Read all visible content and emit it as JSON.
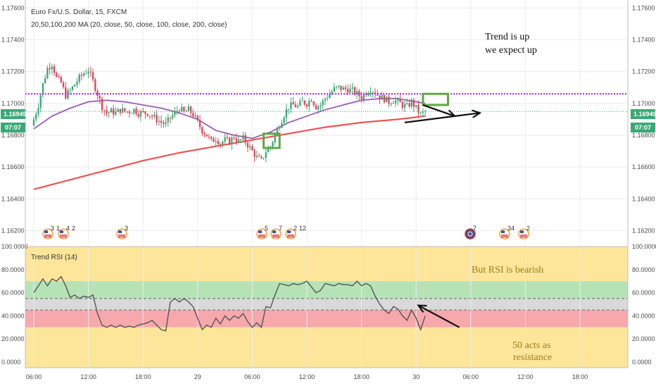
{
  "header": {
    "symbol_title": "Euro Fx/U.S. Dollar, 15, FXCM",
    "ma_legend": "20,50,100,200 MA (20, close, 50, close, 100, close, 200, close)"
  },
  "price_badges": {
    "left_price": "1.16949",
    "left_time": "07:07",
    "right_price": "1.16949",
    "right_time": "07:07",
    "color": "#3aa876"
  },
  "rsi_panel": {
    "title": "Trend RSI (14)"
  },
  "annotations": {
    "trend_note_line1": "Trend is up",
    "trend_note_line2": "we expect up",
    "rsi_note": "But RSI is bearish",
    "resistance_note_line1": "50 acts as",
    "resistance_note_line2": "resistance"
  },
  "events": [
    {
      "icon": "us-flag-icon",
      "label": "3",
      "label2": "1"
    },
    {
      "icon": "us-flag-icon",
      "label": "4",
      "label2": "2"
    },
    {
      "icon": "us-flag-icon",
      "label": "3",
      "label2": ""
    },
    {
      "icon": "us-flag-icon",
      "label": "5",
      "label2": ""
    },
    {
      "icon": "us-flag-icon",
      "label": "7",
      "label2": ""
    },
    {
      "icon": "us-flag-icon",
      "label": "2",
      "label2": "12"
    },
    {
      "icon": "globe-icon",
      "label": "7",
      "label2": ""
    },
    {
      "icon": "us-flag-icon",
      "label": "34",
      "label2": ""
    },
    {
      "icon": "us-flag-icon",
      "label": "2",
      "label2": ""
    }
  ],
  "colors": {
    "up_candle": "#3aa876",
    "down_candle": "#e0435b",
    "ma_purple": "#9a5cb4",
    "ma_red": "#ef5350",
    "resistance_line": "#9c27ff",
    "last_price_line": "#3aa876",
    "rsi_line": "#555555",
    "zone_green": "#b5e3b6",
    "zone_red": "#f7a8ad",
    "zone_gray": "#d9d9d9",
    "zone_yellow": "#fde59a",
    "note_yellow_text": "#a07b1c",
    "box_green": "#5fa846"
  },
  "chart_data": [
    {
      "type": "candlestick",
      "title": "Euro Fx/U.S. Dollar, 15, FXCM",
      "ylim": [
        1.161,
        1.1765
      ],
      "y_ticks": [
        "1.17600",
        "1.17400",
        "1.17200",
        "1.17000",
        "1.16800",
        "1.16600",
        "1.16400",
        "1.16200"
      ],
      "y_tick_values": [
        1.176,
        1.174,
        1.172,
        1.17,
        1.168,
        1.166,
        1.164,
        1.162
      ],
      "x_ticks": [
        "06:00",
        "12:00",
        "18:00",
        "29",
        "06:00",
        "12:00",
        "18:00",
        "30",
        "06:00",
        "12:00",
        "18:00"
      ],
      "x_tick_positions": [
        0,
        24,
        48,
        72,
        96,
        120,
        144,
        168,
        192,
        216,
        240
      ],
      "x_range": [
        0,
        240
      ],
      "close_anchors": [
        [
          0,
          1.169
        ],
        [
          2,
          1.1699
        ],
        [
          4,
          1.1712
        ],
        [
          6,
          1.1722
        ],
        [
          8,
          1.1725
        ],
        [
          10,
          1.1716
        ],
        [
          12,
          1.1713
        ],
        [
          14,
          1.1705
        ],
        [
          16,
          1.1708
        ],
        [
          18,
          1.1712
        ],
        [
          20,
          1.1716
        ],
        [
          22,
          1.1719
        ],
        [
          24,
          1.1721
        ],
        [
          26,
          1.1714
        ],
        [
          28,
          1.1706
        ],
        [
          30,
          1.1698
        ],
        [
          32,
          1.1694
        ],
        [
          34,
          1.1695
        ],
        [
          36,
          1.1694
        ],
        [
          38,
          1.1696
        ],
        [
          40,
          1.1695
        ],
        [
          42,
          1.1695
        ],
        [
          44,
          1.1696
        ],
        [
          46,
          1.1694
        ],
        [
          48,
          1.1694
        ],
        [
          50,
          1.1694
        ],
        [
          52,
          1.1692
        ],
        [
          54,
          1.169
        ],
        [
          56,
          1.1688
        ],
        [
          58,
          1.1687
        ],
        [
          60,
          1.1691
        ],
        [
          62,
          1.1694
        ],
        [
          64,
          1.1697
        ],
        [
          66,
          1.1694
        ],
        [
          68,
          1.1696
        ],
        [
          70,
          1.1693
        ],
        [
          72,
          1.1688
        ],
        [
          74,
          1.1683
        ],
        [
          76,
          1.168
        ],
        [
          78,
          1.1676
        ],
        [
          80,
          1.1678
        ],
        [
          82,
          1.1675
        ],
        [
          84,
          1.1677
        ],
        [
          86,
          1.1676
        ],
        [
          88,
          1.1679
        ],
        [
          90,
          1.1676
        ],
        [
          92,
          1.1678
        ],
        [
          94,
          1.1674
        ],
        [
          96,
          1.167
        ],
        [
          98,
          1.1666
        ],
        [
          100,
          1.1664
        ],
        [
          102,
          1.167
        ],
        [
          104,
          1.1673
        ],
        [
          106,
          1.168
        ],
        [
          108,
          1.1687
        ],
        [
          110,
          1.1693
        ],
        [
          112,
          1.1698
        ],
        [
          114,
          1.1699
        ],
        [
          116,
          1.1698
        ],
        [
          118,
          1.1701
        ],
        [
          120,
          1.17
        ],
        [
          122,
          1.1703
        ],
        [
          124,
          1.1698
        ],
        [
          126,
          1.1699
        ],
        [
          128,
          1.1703
        ],
        [
          130,
          1.1706
        ],
        [
          132,
          1.1709
        ],
        [
          134,
          1.171
        ],
        [
          136,
          1.1709
        ],
        [
          138,
          1.1709
        ],
        [
          140,
          1.1708
        ],
        [
          142,
          1.1706
        ],
        [
          144,
          1.1704
        ],
        [
          146,
          1.1707
        ],
        [
          148,
          1.1709
        ],
        [
          150,
          1.1707
        ],
        [
          152,
          1.1704
        ],
        [
          154,
          1.1703
        ],
        [
          156,
          1.1701
        ],
        [
          158,
          1.1702
        ],
        [
          160,
          1.1701
        ],
        [
          162,
          1.1699
        ],
        [
          164,
          1.1698
        ],
        [
          166,
          1.1701
        ],
        [
          168,
          1.1697
        ],
        [
          170,
          1.1693
        ],
        [
          172,
          1.1695
        ]
      ],
      "moving_averages": [
        {
          "name": "MA 50",
          "color": "#9a5cb4",
          "points": [
            [
              0,
              1.1684
            ],
            [
              8,
              1.1692
            ],
            [
              16,
              1.1697
            ],
            [
              24,
              1.1701
            ],
            [
              32,
              1.1702
            ],
            [
              40,
              1.1701
            ],
            [
              48,
              1.1699
            ],
            [
              56,
              1.1697
            ],
            [
              64,
              1.1694
            ],
            [
              72,
              1.169
            ],
            [
              80,
              1.1683
            ],
            [
              88,
              1.168
            ],
            [
              96,
              1.1678
            ],
            [
              104,
              1.1682
            ],
            [
              112,
              1.1688
            ],
            [
              120,
              1.1692
            ],
            [
              128,
              1.1696
            ],
            [
              136,
              1.1699
            ],
            [
              144,
              1.1702
            ],
            [
              152,
              1.1703
            ],
            [
              160,
              1.1703
            ],
            [
              168,
              1.1701
            ],
            [
              172,
              1.17
            ]
          ]
        },
        {
          "name": "MA 200",
          "color": "#ef5350",
          "points": [
            [
              0,
              1.1646
            ],
            [
              16,
              1.1652
            ],
            [
              32,
              1.1658
            ],
            [
              48,
              1.1664
            ],
            [
              64,
              1.1669
            ],
            [
              80,
              1.1673
            ],
            [
              96,
              1.1677
            ],
            [
              112,
              1.1681
            ],
            [
              128,
              1.1685
            ],
            [
              144,
              1.1688
            ],
            [
              160,
              1.169
            ],
            [
              172,
              1.1692
            ]
          ]
        }
      ],
      "resistance_level": 1.1706,
      "last_price": 1.16949,
      "highlight_boxes": [
        {
          "x": [
            101,
            108
          ],
          "y": [
            1.1672,
            1.1681
          ]
        },
        {
          "x": [
            171,
            182
          ],
          "y": [
            1.1699,
            1.1706
          ]
        }
      ],
      "arrows": [
        {
          "from": [
            171,
            1.1699
          ],
          "to": [
            185,
            1.1692
          ]
        },
        {
          "from": [
            163,
            1.1688
          ],
          "to": [
            196,
            1.1694
          ]
        }
      ]
    },
    {
      "type": "line",
      "title": "Trend RSI (14)",
      "ylim": [
        -5,
        100
      ],
      "y_ticks": [
        "100.0000",
        "80.0000",
        "60.0000",
        "40.0000",
        "20.0000",
        "0.0000"
      ],
      "y_tick_values": [
        100,
        80,
        60,
        40,
        20,
        0
      ],
      "zones": [
        {
          "from": 70,
          "to": 100,
          "color": "#fde59a"
        },
        {
          "from": 55,
          "to": 70,
          "color": "#b5e3b6"
        },
        {
          "from": 45,
          "to": 55,
          "color": "#d9d9d9"
        },
        {
          "from": 30,
          "to": 45,
          "color": "#f7a8ad"
        },
        {
          "from": -5,
          "to": 30,
          "color": "#fde59a"
        }
      ],
      "dashed_levels": [
        55,
        45
      ],
      "series": [
        {
          "values": [
            [
              0,
              60
            ],
            [
              2,
              66
            ],
            [
              4,
              72
            ],
            [
              6,
              66
            ],
            [
              8,
              72
            ],
            [
              10,
              70
            ],
            [
              12,
              74
            ],
            [
              14,
              66
            ],
            [
              16,
              56
            ],
            [
              18,
              58
            ],
            [
              20,
              55
            ],
            [
              22,
              57
            ],
            [
              24,
              56
            ],
            [
              26,
              58
            ],
            [
              28,
              42
            ],
            [
              30,
              32
            ],
            [
              32,
              30
            ],
            [
              34,
              32
            ],
            [
              36,
              30
            ],
            [
              38,
              32
            ],
            [
              40,
              30
            ],
            [
              42,
              31
            ],
            [
              44,
              30
            ],
            [
              46,
              32
            ],
            [
              48,
              33
            ],
            [
              50,
              34
            ],
            [
              52,
              36
            ],
            [
              54,
              32
            ],
            [
              56,
              28
            ],
            [
              58,
              27
            ],
            [
              60,
              52
            ],
            [
              62,
              55
            ],
            [
              64,
              52
            ],
            [
              66,
              55
            ],
            [
              68,
              52
            ],
            [
              70,
              48
            ],
            [
              72,
              38
            ],
            [
              74,
              28
            ],
            [
              76,
              32
            ],
            [
              78,
              30
            ],
            [
              80,
              38
            ],
            [
              82,
              33
            ],
            [
              84,
              40
            ],
            [
              86,
              36
            ],
            [
              88,
              40
            ],
            [
              90,
              38
            ],
            [
              92,
              42
            ],
            [
              94,
              35
            ],
            [
              96,
              30
            ],
            [
              98,
              34
            ],
            [
              100,
              30
            ],
            [
              102,
              48
            ],
            [
              104,
              47
            ],
            [
              106,
              58
            ],
            [
              108,
              68
            ],
            [
              110,
              67
            ],
            [
              112,
              66
            ],
            [
              114,
              68
            ],
            [
              116,
              67
            ],
            [
              118,
              68
            ],
            [
              120,
              70
            ],
            [
              122,
              65
            ],
            [
              124,
              60
            ],
            [
              126,
              62
            ],
            [
              128,
              68
            ],
            [
              130,
              67
            ],
            [
              132,
              66
            ],
            [
              134,
              68
            ],
            [
              136,
              67
            ],
            [
              138,
              67
            ],
            [
              140,
              66
            ],
            [
              142,
              70
            ],
            [
              144,
              66
            ],
            [
              146,
              68
            ],
            [
              148,
              66
            ],
            [
              150,
              57
            ],
            [
              152,
              50
            ],
            [
              154,
              45
            ],
            [
              156,
              42
            ],
            [
              158,
              48
            ],
            [
              160,
              46
            ],
            [
              162,
              40
            ],
            [
              164,
              36
            ],
            [
              166,
              45
            ],
            [
              168,
              38
            ],
            [
              170,
              28
            ],
            [
              172,
              40
            ]
          ]
        }
      ],
      "arrow": {
        "from": [
          187,
          30
        ],
        "to": [
          169,
          49
        ]
      }
    }
  ]
}
